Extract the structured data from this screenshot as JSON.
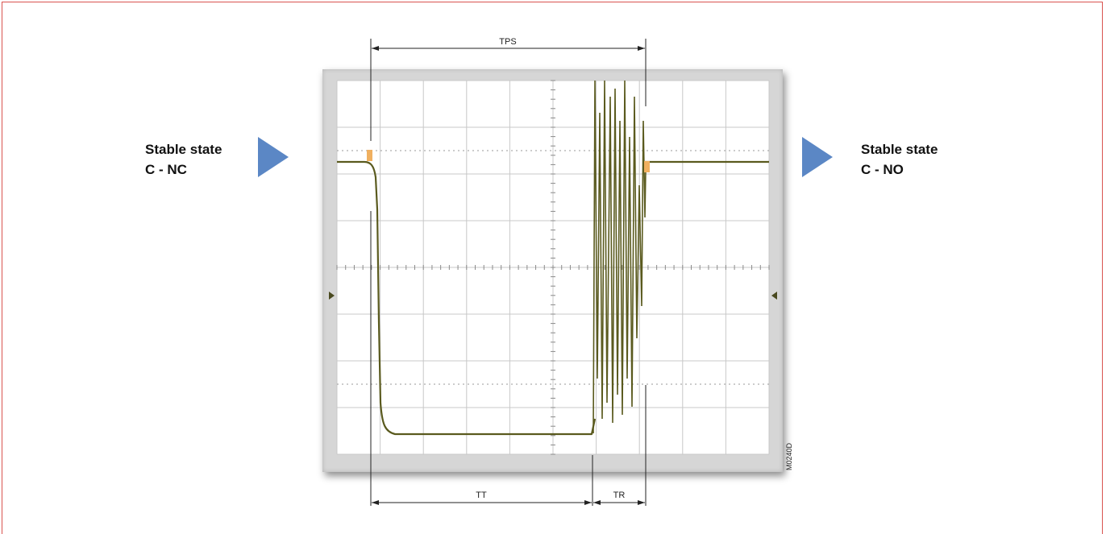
{
  "left_label": {
    "line1": "Stable state",
    "line2": "C - NC"
  },
  "right_label": {
    "line1": "Stable state",
    "line2": "C - NO"
  },
  "dimensions": {
    "top": "TPS",
    "bottom_left": "TT",
    "bottom_right": "TR"
  },
  "figure_code": "M0240D",
  "colors": {
    "frame_border": "#d9534f",
    "arrow": "#5b87c5",
    "trace": "#5a5a1e",
    "trigger_marker": "#f0b060",
    "grid": "#c8c8c8"
  },
  "icons": [
    "right-triangle-arrow-icon",
    "channel-marker-left-icon",
    "channel-marker-right-icon"
  ]
}
